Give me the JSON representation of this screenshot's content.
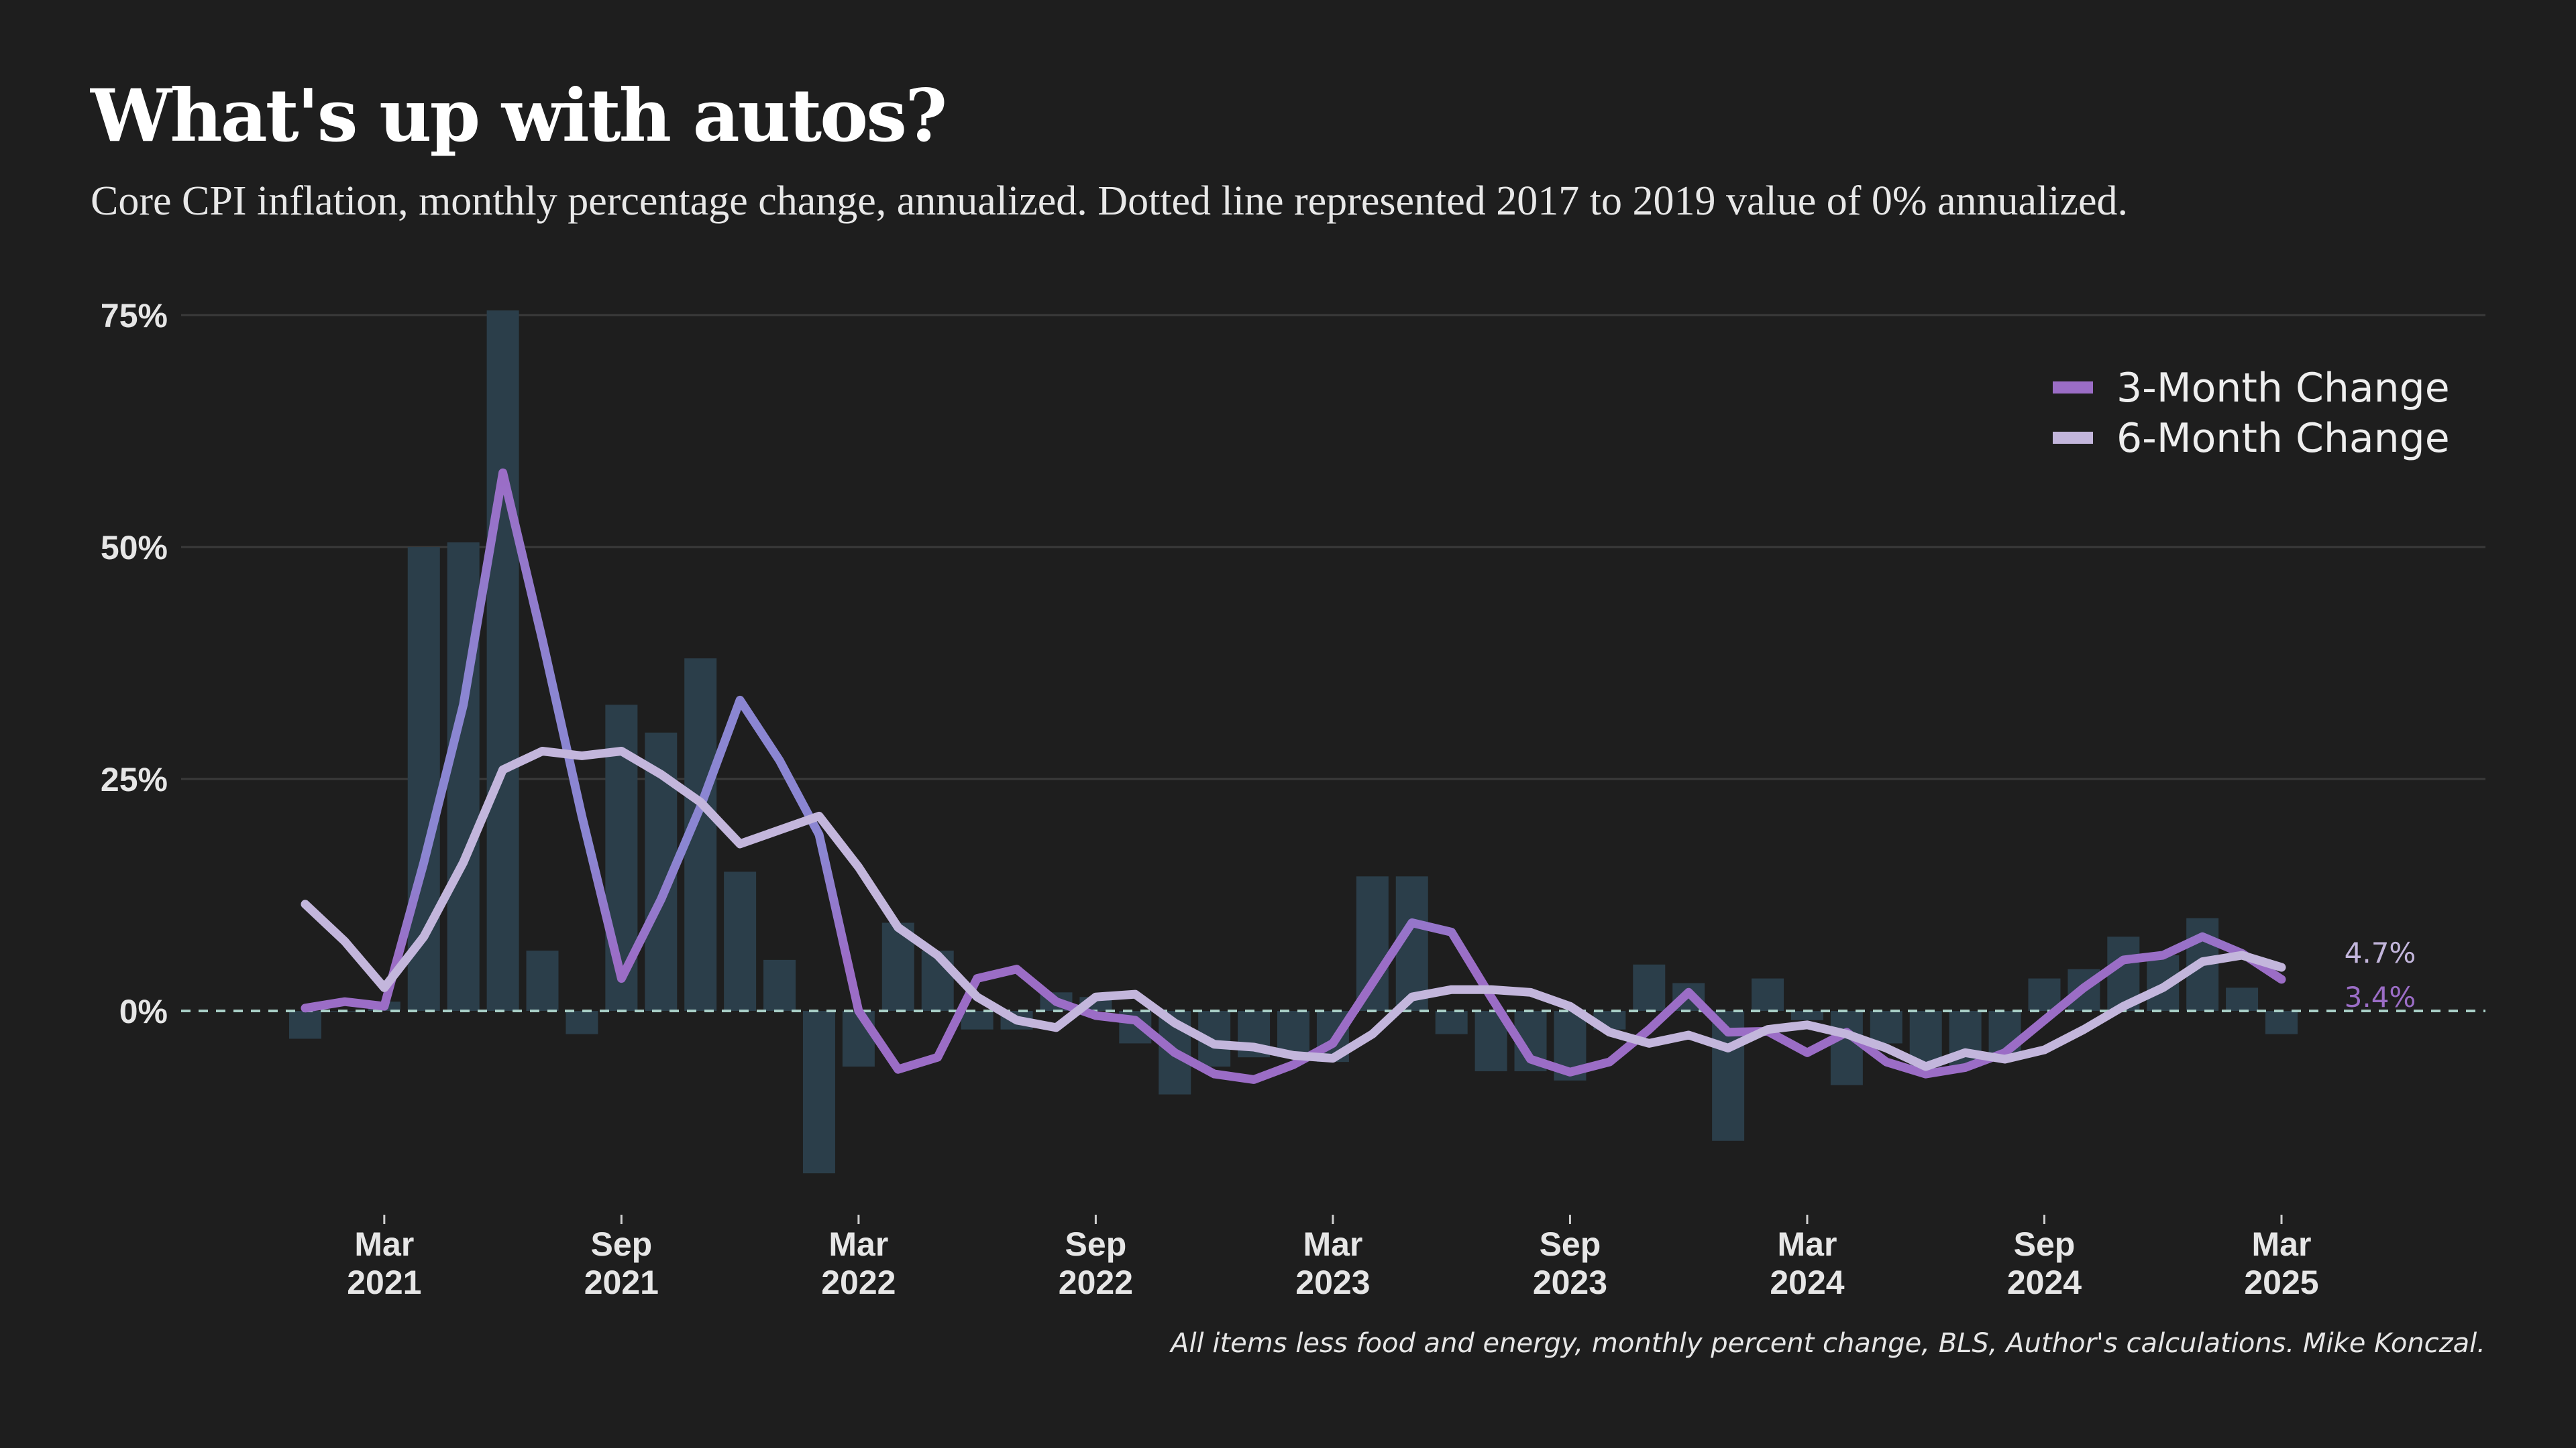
{
  "colors": {
    "background": "#1e1e1e",
    "bars": "#2b3e4a",
    "line_3m": "#9b6dc6",
    "line_3m_alt": "#8b86d2",
    "line_6m": "#c3b6dc",
    "grid": "#3a3a3a",
    "zero_line": "#a9cfc7"
  },
  "chart_data": {
    "type": "line",
    "title": "What's up with autos?",
    "subtitle": "Core CPI inflation, monthly percentage change, annualized. Dotted line represented 2017 to 2019 value of 0% annualized.",
    "source": "All items less food and energy, monthly percent change, BLS, Author's calculations. Mike Konczal.",
    "ylim": [
      -20,
      75
    ],
    "y_ticks": [
      {
        "value": 75,
        "label": "75%"
      },
      {
        "value": 50,
        "label": "50%"
      },
      {
        "value": 25,
        "label": "25%"
      },
      {
        "value": 0,
        "label": "0%"
      }
    ],
    "reference_line": {
      "value": 0,
      "style": "dotted"
    },
    "grid": true,
    "legend_position": "top-right",
    "x": [
      "2021-01",
      "2021-02",
      "2021-03",
      "2021-04",
      "2021-05",
      "2021-06",
      "2021-07",
      "2021-08",
      "2021-09",
      "2021-10",
      "2021-11",
      "2021-12",
      "2022-01",
      "2022-02",
      "2022-03",
      "2022-04",
      "2022-05",
      "2022-06",
      "2022-07",
      "2022-08",
      "2022-09",
      "2022-10",
      "2022-11",
      "2022-12",
      "2023-01",
      "2023-02",
      "2023-03",
      "2023-04",
      "2023-05",
      "2023-06",
      "2023-07",
      "2023-08",
      "2023-09",
      "2023-10",
      "2023-11",
      "2023-12",
      "2024-01",
      "2024-02",
      "2024-03",
      "2024-04",
      "2024-05",
      "2024-06",
      "2024-07",
      "2024-08",
      "2024-09",
      "2024-10",
      "2024-11",
      "2024-12",
      "2025-01",
      "2025-02",
      "2025-03"
    ],
    "x_ticks": [
      {
        "month": "Mar",
        "year": "2021",
        "index": 2
      },
      {
        "month": "Sep",
        "year": "2021",
        "index": 8
      },
      {
        "month": "Mar",
        "year": "2022",
        "index": 14
      },
      {
        "month": "Sep",
        "year": "2022",
        "index": 20
      },
      {
        "month": "Mar",
        "year": "2023",
        "index": 26
      },
      {
        "month": "Sep",
        "year": "2023",
        "index": 32
      },
      {
        "month": "Mar",
        "year": "2024",
        "index": 38
      },
      {
        "month": "Sep",
        "year": "2024",
        "index": 44
      },
      {
        "month": "Mar",
        "year": "2025",
        "index": 50
      }
    ],
    "bars": [
      -3,
      0,
      1,
      50,
      50.5,
      75.5,
      6.5,
      -2.5,
      33,
      30,
      38,
      15,
      5.5,
      -17.5,
      -6,
      9.5,
      6.5,
      -2,
      -2,
      2,
      1.5,
      -3.5,
      -9,
      -6,
      -5,
      -5,
      -5.5,
      14.5,
      14.5,
      -2.5,
      -6.5,
      -6.5,
      -7.5,
      -2,
      5,
      3,
      -14,
      3.5,
      -1,
      -8,
      -3.5,
      -6,
      -6,
      -4.5,
      3.5,
      4.5,
      8,
      6,
      10,
      2.5,
      -2.5
    ],
    "series": [
      {
        "name": "3-Month Change",
        "values": [
          0.3,
          1,
          0.5,
          16,
          33,
          58,
          40,
          21,
          3.5,
          12,
          22,
          33.5,
          27,
          19,
          0,
          -6.3,
          -5,
          3.5,
          4.5,
          1,
          -0.5,
          -1,
          -4.5,
          -6.8,
          -7.4,
          -5.8,
          -3.5,
          3,
          9.5,
          8.5,
          1.5,
          -5.2,
          -6.6,
          -5.5,
          -2,
          2,
          -2.3,
          -2.2,
          -4.5,
          -2.3,
          -5.5,
          -6.8,
          -6.1,
          -4.5,
          -1,
          2.5,
          5.5,
          6,
          8,
          6.2,
          3.4
        ]
      },
      {
        "name": "6-Month Change",
        "values": [
          11.5,
          7.5,
          2.5,
          8,
          16,
          26,
          28,
          27.5,
          28,
          25.5,
          22.5,
          18,
          19.5,
          21,
          15.5,
          9,
          6,
          1.5,
          -1,
          -1.8,
          1.5,
          1.8,
          -1.3,
          -3.6,
          -3.9,
          -4.8,
          -5.1,
          -2.5,
          1.5,
          2.3,
          2.3,
          2,
          0.5,
          -2.3,
          -3.5,
          -2.6,
          -4,
          -2,
          -1.5,
          -2.5,
          -4,
          -6,
          -4.5,
          -5.2,
          -4.2,
          -2,
          0.5,
          2.5,
          5.3,
          6,
          4.7
        ]
      }
    ],
    "end_labels": [
      {
        "series": "6-Month Change",
        "text": "4.7%"
      },
      {
        "series": "3-Month Change",
        "text": "3.4%"
      }
    ]
  }
}
